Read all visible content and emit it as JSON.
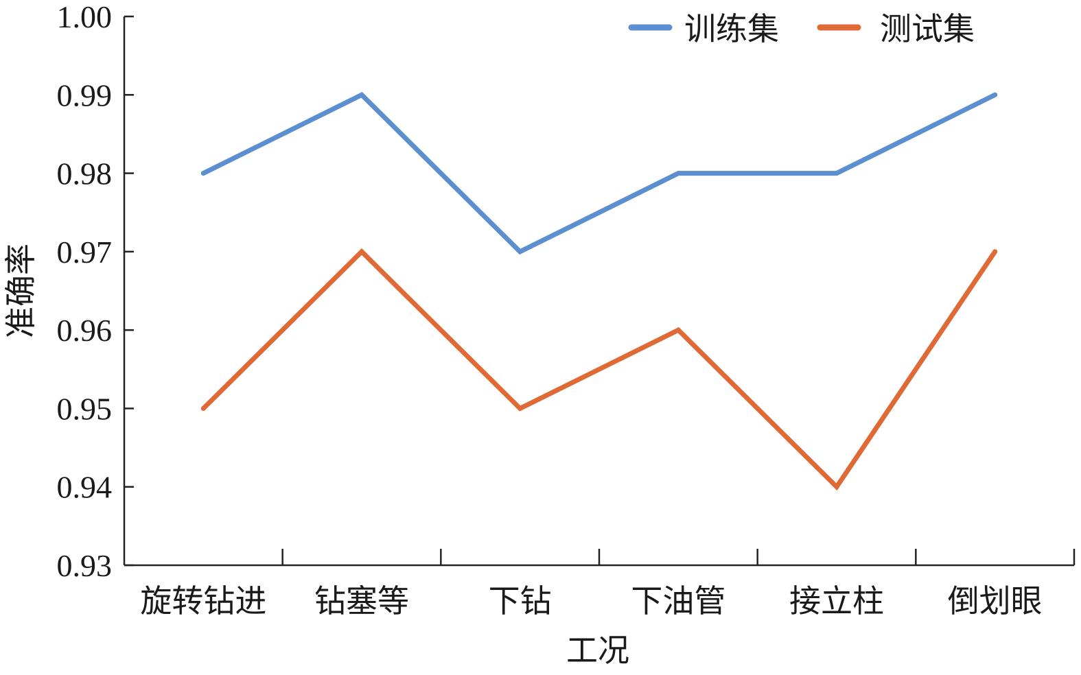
{
  "chart_data": {
    "type": "line",
    "categories": [
      "旋转钻进",
      "钻塞等",
      "下钻",
      "下油管",
      "接立柱",
      "倒划眼"
    ],
    "series": [
      {
        "name": "训练集",
        "values": [
          0.98,
          0.99,
          0.97,
          0.98,
          0.98,
          0.99
        ],
        "color": "#5b8fd0"
      },
      {
        "name": "测试集",
        "values": [
          0.95,
          0.97,
          0.95,
          0.96,
          0.94,
          0.97
        ],
        "color": "#e06a35"
      }
    ],
    "xlabel": "工况",
    "ylabel": "准确率",
    "ylim": [
      0.93,
      1.0
    ],
    "yticks": [
      "0.93",
      "0.94",
      "0.95",
      "0.96",
      "0.97",
      "0.98",
      "0.99",
      "1.00"
    ],
    "grid": false,
    "legend_position": "top-right"
  }
}
